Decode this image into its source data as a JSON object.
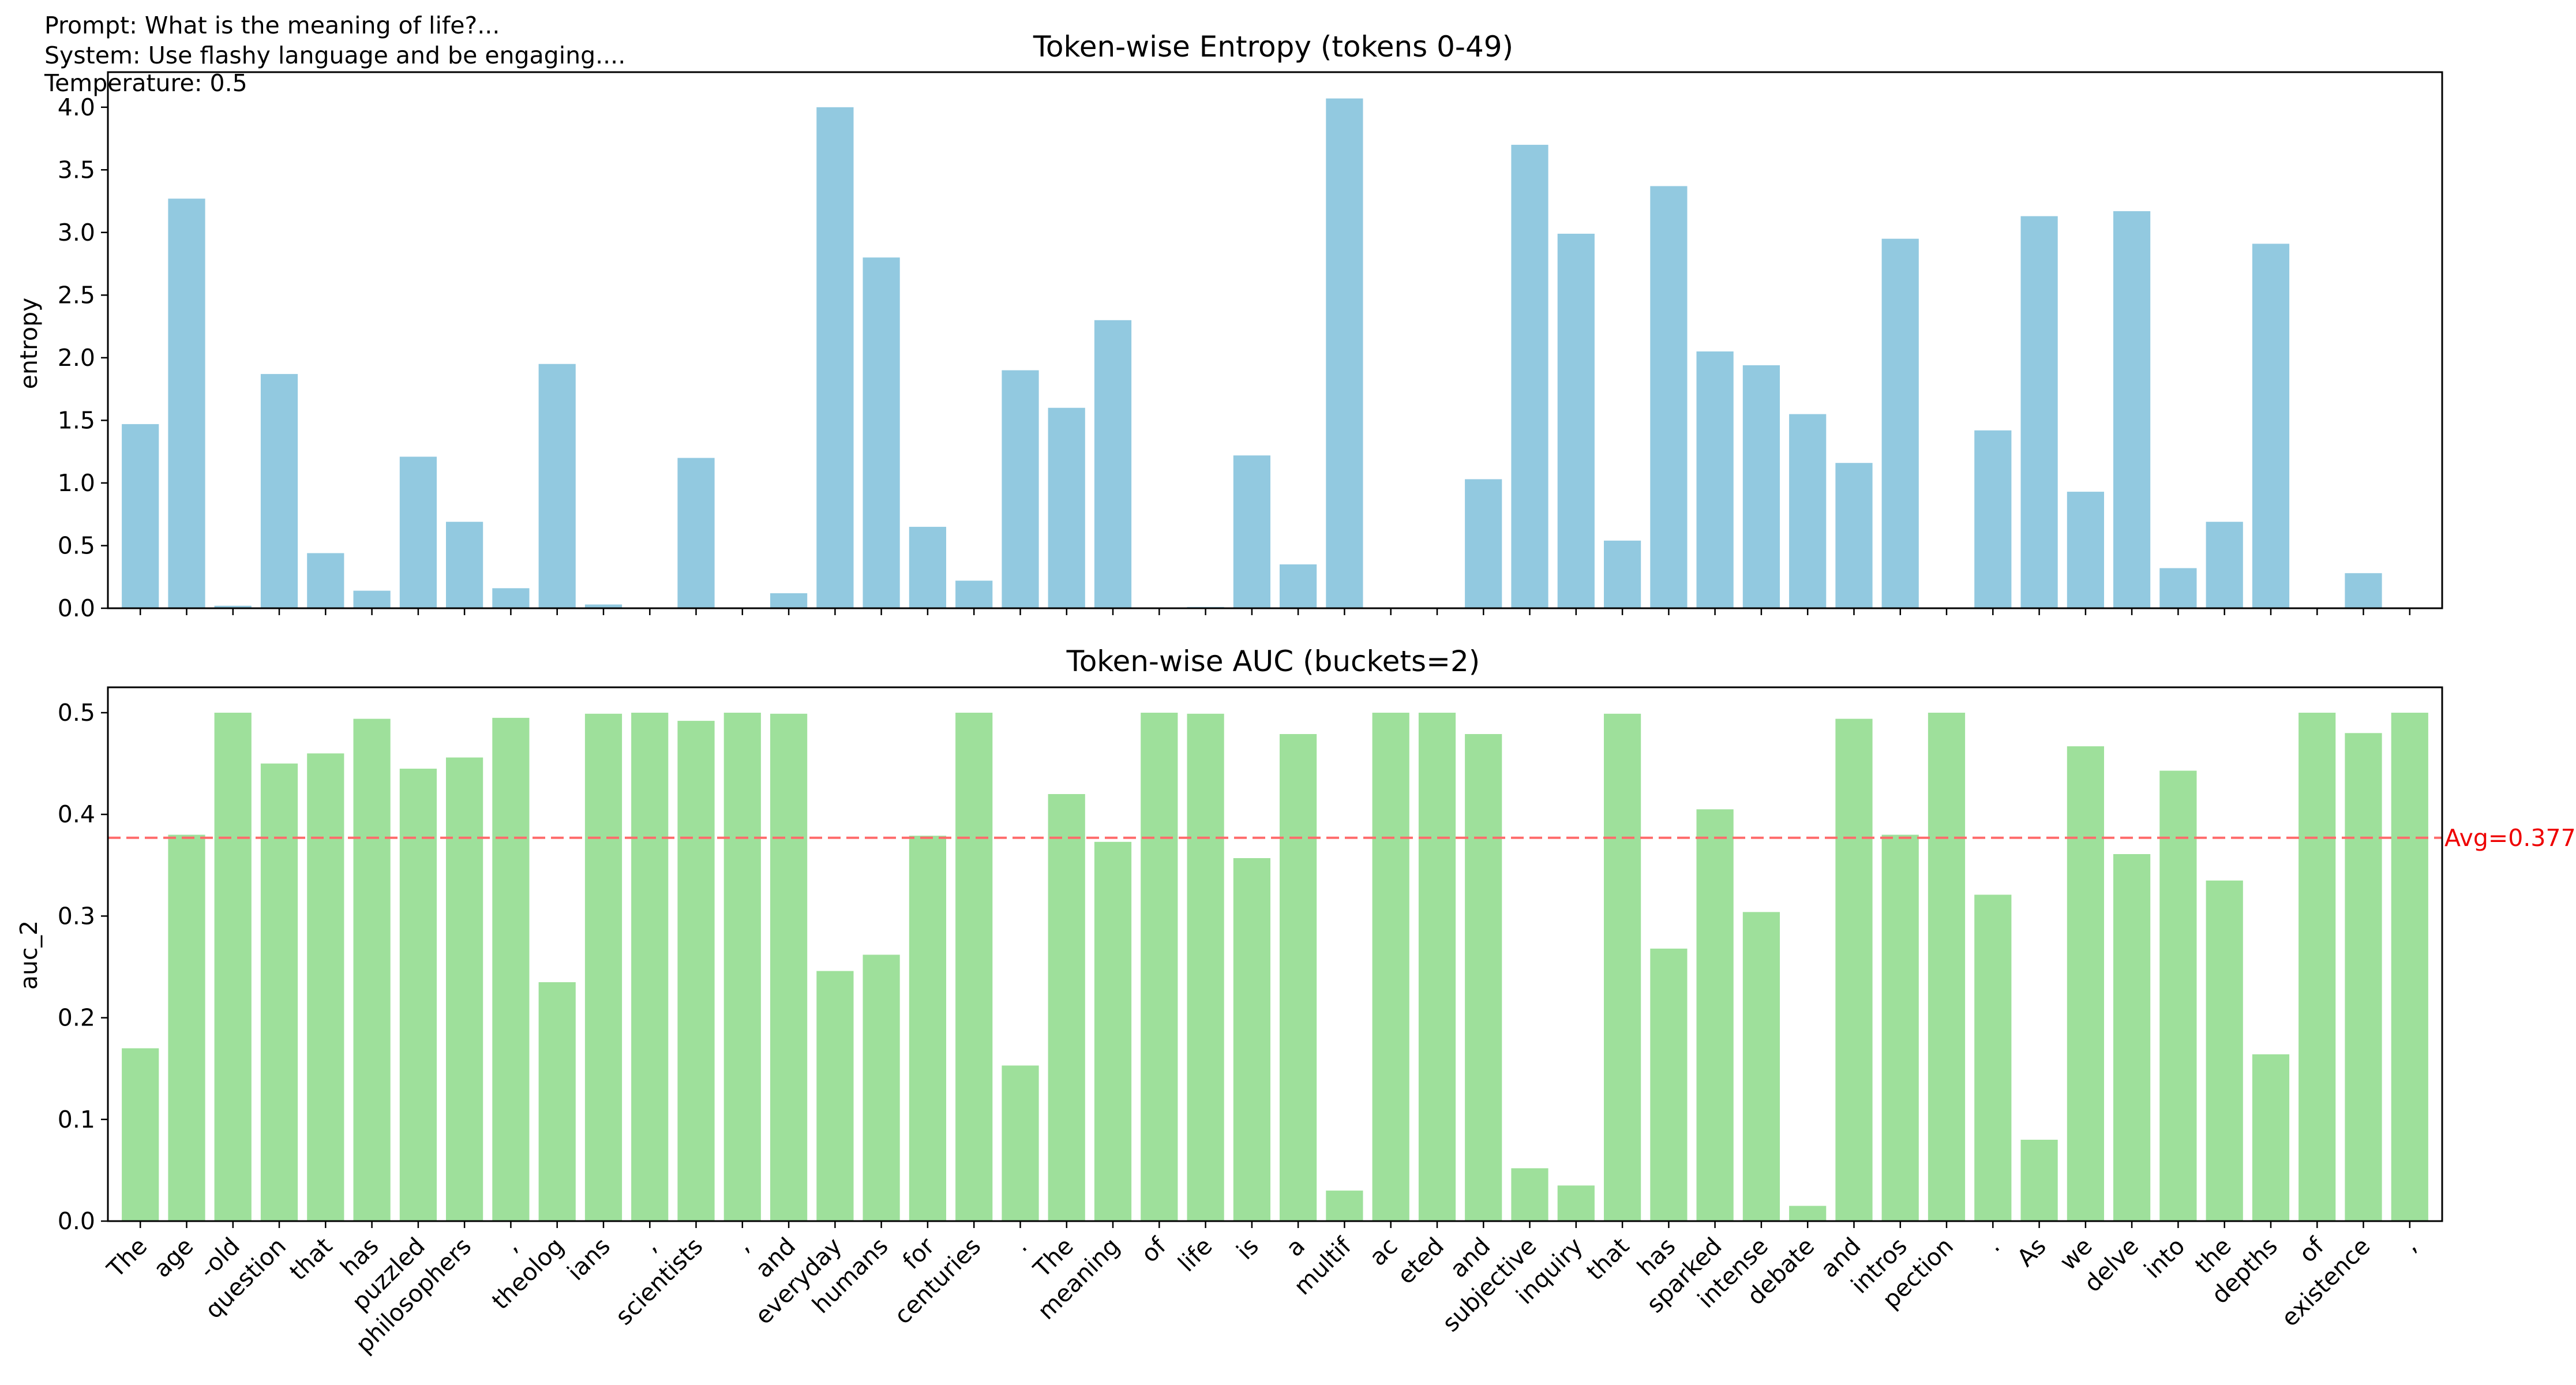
{
  "header": {
    "prompt": "Prompt: What is the meaning of life?...",
    "system": "System: Use flashy language and be engaging....",
    "temperature": "Temperature: 0.5"
  },
  "colors": {
    "entropy_bar": "#92c9e0",
    "auc_bar": "#9ee09b",
    "avg_line": "#ff6b6b",
    "avg_text": "#ee0000"
  },
  "chart_data": [
    {
      "type": "bar",
      "title": "Token-wise Entropy (tokens 0-49)",
      "ylabel": "entropy",
      "ylim": [
        0,
        4.28
      ],
      "yticks": [
        "0.0",
        "0.5",
        "1.0",
        "1.5",
        "2.0",
        "2.5",
        "3.0",
        "3.5",
        "4.0"
      ],
      "grid": false,
      "categories": [
        "The",
        " age",
        "-old",
        " question",
        " that",
        " has",
        " puzzled",
        " philosophers",
        ",",
        " theolog",
        "ians",
        ",",
        " scientists",
        ",",
        " and",
        " everyday",
        " humans",
        " for",
        " centuries",
        ".",
        " The",
        " meaning",
        " of",
        " life",
        " is",
        " a",
        " multif",
        "ac",
        "eted",
        " and",
        " subjective",
        " inquiry",
        " that",
        " has",
        " sparked",
        " intense",
        " debate",
        " and",
        " intros",
        "pection",
        ".",
        " As",
        " we",
        " delve",
        " into",
        " the",
        " depths",
        " of",
        " existence",
        ","
      ],
      "values": [
        1.47,
        3.27,
        0.02,
        1.87,
        0.44,
        0.14,
        1.21,
        0.69,
        0.16,
        1.95,
        0.03,
        0.0,
        1.2,
        0.0,
        0.12,
        4.0,
        2.8,
        0.65,
        0.22,
        1.9,
        1.6,
        2.3,
        0.0,
        0.01,
        1.22,
        0.35,
        4.07,
        0.0,
        0.0,
        1.03,
        3.7,
        2.99,
        0.54,
        3.37,
        2.05,
        1.94,
        1.55,
        1.16,
        2.95,
        0.0,
        1.42,
        3.13,
        0.93,
        3.17,
        0.32,
        0.69,
        2.91,
        0.0,
        0.28,
        0.0
      ]
    },
    {
      "type": "bar",
      "title": "Token-wise AUC (buckets=2)",
      "ylabel": "auc_2",
      "ylim": [
        0,
        0.525
      ],
      "yticks": [
        "0.0",
        "0.1",
        "0.2",
        "0.3",
        "0.4",
        "0.5"
      ],
      "grid": false,
      "average": 0.377,
      "average_label": "Avg=0.377",
      "categories": [
        "The",
        " age",
        "-old",
        " question",
        " that",
        " has",
        " puzzled",
        " philosophers",
        ",",
        " theolog",
        "ians",
        ",",
        " scientists",
        ",",
        " and",
        " everyday",
        " humans",
        " for",
        " centuries",
        ".",
        " The",
        " meaning",
        " of",
        " life",
        " is",
        " a",
        " multif",
        "ac",
        "eted",
        " and",
        " subjective",
        " inquiry",
        " that",
        " has",
        " sparked",
        " intense",
        " debate",
        " and",
        " intros",
        "pection",
        ".",
        " As",
        " we",
        " delve",
        " into",
        " the",
        " depths",
        " of",
        " existence",
        ","
      ],
      "values": [
        0.17,
        0.38,
        0.5,
        0.45,
        0.46,
        0.494,
        0.445,
        0.456,
        0.495,
        0.235,
        0.499,
        0.5,
        0.492,
        0.5,
        0.499,
        0.246,
        0.262,
        0.379,
        0.5,
        0.153,
        0.42,
        0.373,
        0.5,
        0.499,
        0.357,
        0.479,
        0.03,
        0.5,
        0.5,
        0.479,
        0.052,
        0.035,
        0.499,
        0.268,
        0.405,
        0.304,
        0.015,
        0.494,
        0.38,
        0.5,
        0.321,
        0.08,
        0.467,
        0.361,
        0.443,
        0.335,
        0.164,
        0.5,
        0.48,
        0.5
      ]
    }
  ]
}
